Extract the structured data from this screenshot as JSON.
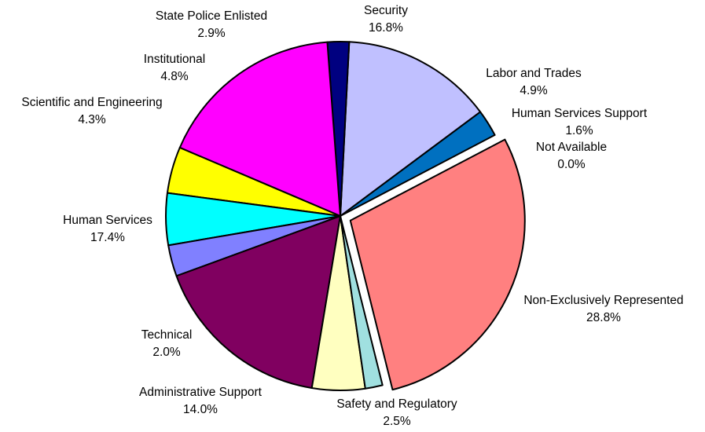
{
  "chart_data": {
    "type": "pie",
    "title": "",
    "legend": "none",
    "exploded_slices": [
      "Non-Exclusively Represented"
    ],
    "slices": [
      {
        "name": "Non-Exclusively Represented",
        "value": 28.8,
        "label_value": "28.8%",
        "color": "#FF8080"
      },
      {
        "name": "Safety and Regulatory",
        "value": 2.5,
        "label_value": "2.5%",
        "color": "#0070C0"
      },
      {
        "name": "Administrative Support",
        "value": 14.0,
        "label_value": "14.0%",
        "color": "#C0C0FF"
      },
      {
        "name": "Technical",
        "value": 2.0,
        "label_value": "2.0%",
        "color": "#000080"
      },
      {
        "name": "Human Services",
        "value": 17.4,
        "label_value": "17.4%",
        "color": "#FF00FF"
      },
      {
        "name": "Scientific and Engineering",
        "value": 4.3,
        "label_value": "4.3%",
        "color": "#FFFF00"
      },
      {
        "name": "Institutional",
        "value": 4.8,
        "label_value": "4.8%",
        "color": "#00FFFF"
      },
      {
        "name": "State Police Enlisted",
        "value": 2.9,
        "label_value": "2.9%",
        "color": "#8080FF"
      },
      {
        "name": "Security",
        "value": 16.8,
        "label_value": "16.8%",
        "color": "#800060"
      },
      {
        "name": "Labor and Trades",
        "value": 4.9,
        "label_value": "4.9%",
        "color": "#FFFFC0"
      },
      {
        "name": "Human Services Support",
        "value": 1.6,
        "label_value": "1.6%",
        "color": "#A0E0E0"
      },
      {
        "name": "Not Available",
        "value": 0.0,
        "label_value": "0.0%",
        "color": "#FFFFFF"
      }
    ]
  }
}
